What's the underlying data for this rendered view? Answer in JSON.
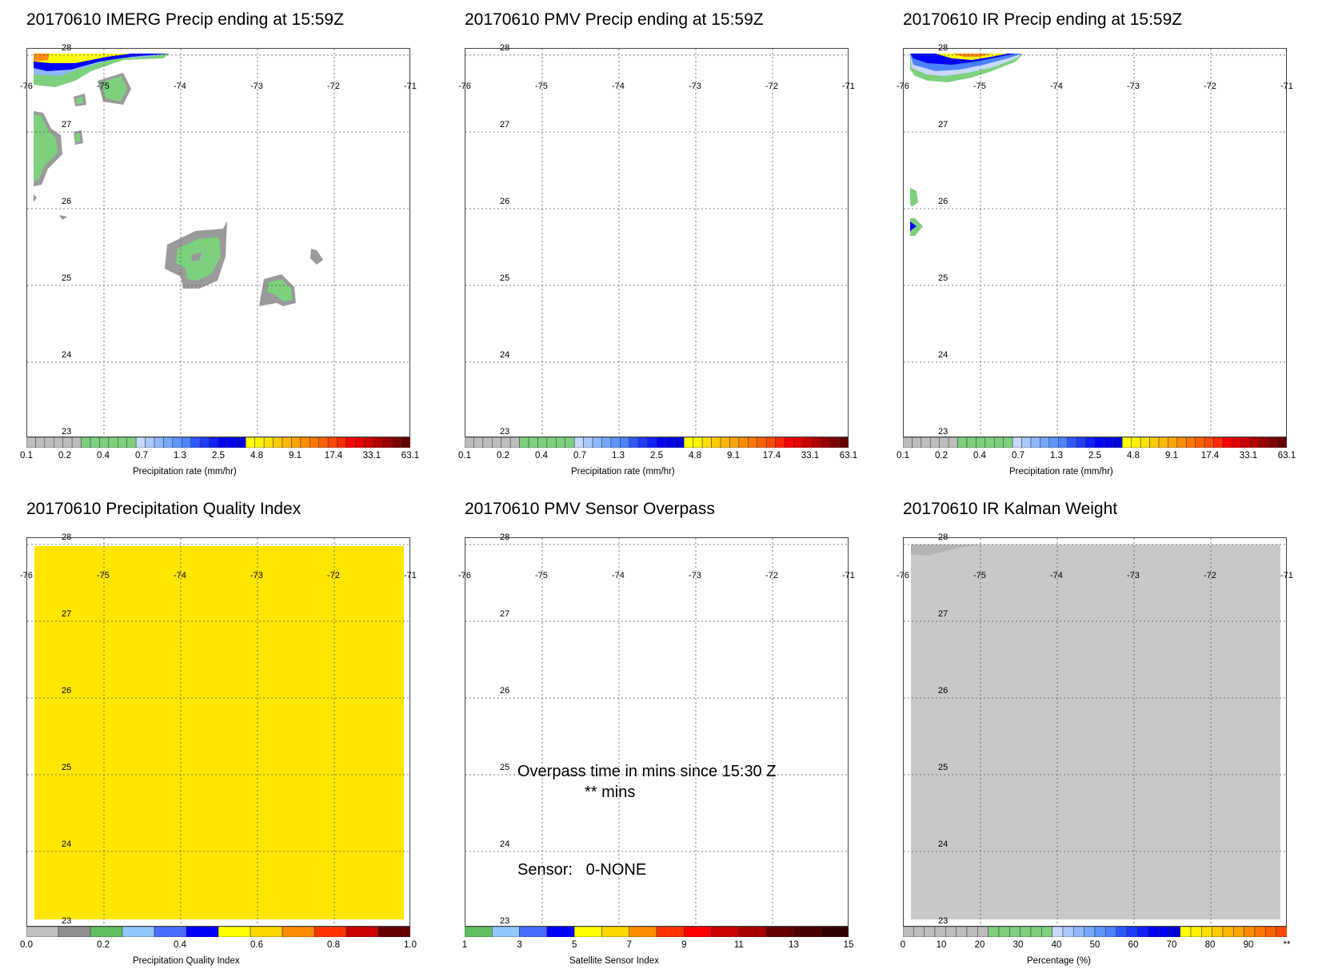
{
  "panels": [
    {
      "id": "imerg",
      "title": "20170610 IMERG Precip ending at 15:59Z",
      "colorbar": {
        "title": "Precipitation rate (mm/hr)",
        "ticks": [
          "0.1",
          "0.2",
          "0.4",
          "0.7",
          "1.3",
          "2.5",
          "4.8",
          "9.1",
          "17.4",
          "33.1",
          "63.1"
        ],
        "colors": [
          "#bdbdbd",
          "#bdbdbd",
          "#bdbdbd",
          "#bdbdbd",
          "#bdbdbd",
          "#bdbdbd",
          "#7dd07d",
          "#7dd07d",
          "#7dd07d",
          "#7dd07d",
          "#7dd07d",
          "#7dd07d",
          "#c8d8ff",
          "#a9c9ff",
          "#8fb8ff",
          "#76a7ff",
          "#5c95ff",
          "#4a82ff",
          "#2f57ff",
          "#1f3bff",
          "#0f1fff",
          "#0000ff",
          "#0000f0",
          "#0000dc",
          "#ffff00",
          "#fff200",
          "#ffe000",
          "#ffcc00",
          "#ffb800",
          "#ffa300",
          "#ff8c00",
          "#ff7700",
          "#ff6000",
          "#ff4800",
          "#ff2800",
          "#ff0000",
          "#e60000",
          "#cc0000",
          "#b30000",
          "#990000",
          "#800000",
          "#660000"
        ]
      }
    },
    {
      "id": "pmv",
      "title": "20170610 PMV Precip ending at 15:59Z",
      "colorbar": {
        "title": "Precipitation rate (mm/hr)",
        "ticks": [
          "0.1",
          "0.2",
          "0.4",
          "0.7",
          "1.3",
          "2.5",
          "4.8",
          "9.1",
          "17.4",
          "33.1",
          "63.1"
        ],
        "colors": [
          "#bdbdbd",
          "#bdbdbd",
          "#bdbdbd",
          "#bdbdbd",
          "#bdbdbd",
          "#bdbdbd",
          "#7dd07d",
          "#7dd07d",
          "#7dd07d",
          "#7dd07d",
          "#7dd07d",
          "#7dd07d",
          "#c8d8ff",
          "#a9c9ff",
          "#8fb8ff",
          "#76a7ff",
          "#5c95ff",
          "#4a82ff",
          "#2f57ff",
          "#1f3bff",
          "#0f1fff",
          "#0000ff",
          "#0000f0",
          "#0000dc",
          "#ffff00",
          "#fff200",
          "#ffe000",
          "#ffcc00",
          "#ffb800",
          "#ffa300",
          "#ff8c00",
          "#ff7700",
          "#ff6000",
          "#ff4800",
          "#ff2800",
          "#ff0000",
          "#e60000",
          "#cc0000",
          "#b30000",
          "#990000",
          "#800000",
          "#660000"
        ]
      }
    },
    {
      "id": "ir",
      "title": "20170610 IR Precip ending at 15:59Z",
      "colorbar": {
        "title": "Precipitation rate (mm/hr)",
        "ticks": [
          "0.1",
          "0.2",
          "0.4",
          "0.7",
          "1.3",
          "2.5",
          "4.8",
          "9.1",
          "17.4",
          "33.1",
          "63.1"
        ],
        "colors": [
          "#bdbdbd",
          "#bdbdbd",
          "#bdbdbd",
          "#bdbdbd",
          "#bdbdbd",
          "#bdbdbd",
          "#7dd07d",
          "#7dd07d",
          "#7dd07d",
          "#7dd07d",
          "#7dd07d",
          "#7dd07d",
          "#c8d8ff",
          "#a9c9ff",
          "#8fb8ff",
          "#76a7ff",
          "#5c95ff",
          "#4a82ff",
          "#2f57ff",
          "#1f3bff",
          "#0f1fff",
          "#0000ff",
          "#0000f0",
          "#0000dc",
          "#ffff00",
          "#fff200",
          "#ffe000",
          "#ffcc00",
          "#ffb800",
          "#ffa300",
          "#ff8c00",
          "#ff7700",
          "#ff6000",
          "#ff4800",
          "#ff2800",
          "#ff0000",
          "#e60000",
          "#cc0000",
          "#b30000",
          "#990000",
          "#800000",
          "#660000"
        ]
      }
    },
    {
      "id": "pqi",
      "title": "20170610 Precipitation Quality Index",
      "colorbar": {
        "title": "Precipitation Quality Index",
        "ticks": [
          "0.0",
          "0.2",
          "0.4",
          "0.6",
          "0.8",
          "1.0"
        ],
        "colors": [
          "#c0c0c0",
          "#909090",
          "#5fbf5f",
          "#90c8ff",
          "#4a6cff",
          "#0000ff",
          "#ffff00",
          "#ffd700",
          "#ff8c00",
          "#ff3300",
          "#cc0000",
          "#660000"
        ]
      }
    },
    {
      "id": "overpass",
      "title": "20170610 PMV Sensor Overpass",
      "colorbar": {
        "title": "Satellite Sensor Index",
        "ticks": [
          "1",
          "3",
          "5",
          "7",
          "9",
          "11",
          "13",
          "15"
        ],
        "colors": [
          "#5fbf5f",
          "#90c8ff",
          "#4a6cff",
          "#0000ff",
          "#ffff00",
          "#ffd700",
          "#ff8c00",
          "#ff3300",
          "#ff0000",
          "#cc0000",
          "#aa0000",
          "#660000",
          "#4d0000",
          "#330000"
        ]
      },
      "annotations": {
        "line1": "Overpass time in mins since 15:30 Z",
        "line2": "** mins",
        "line3": "Sensor:   0-NONE"
      }
    },
    {
      "id": "kalman",
      "title": "20170610 IR Kalman Weight",
      "colorbar": {
        "title": "Percentage (%)",
        "ticks": [
          "0",
          "10",
          "20",
          "30",
          "40",
          "50",
          "60",
          "70",
          "80",
          "90",
          "**"
        ],
        "colors": [
          "#bdbdbd",
          "#bdbdbd",
          "#bdbdbd",
          "#bdbdbd",
          "#bdbdbd",
          "#bdbdbd",
          "#bdbdbd",
          "#bdbdbd",
          "#7dd07d",
          "#7dd07d",
          "#7dd07d",
          "#7dd07d",
          "#7dd07d",
          "#7dd07d",
          "#c8d8ff",
          "#a9c9ff",
          "#8fb8ff",
          "#76a7ff",
          "#5c95ff",
          "#4a82ff",
          "#2f57ff",
          "#1f3bff",
          "#0f1fff",
          "#0000ff",
          "#0000f0",
          "#0000dc",
          "#ffff00",
          "#fff200",
          "#ffe000",
          "#ffcc00",
          "#ffb800",
          "#ffa300",
          "#ff8c00",
          "#ff7700",
          "#ff6000",
          "#ff4800"
        ]
      }
    }
  ],
  "chart_data": {
    "type": "heatmap",
    "map_grid": {
      "lon_labels": [
        "-76",
        "-75",
        "-74",
        "-73",
        "-72",
        "-71"
      ],
      "lat_labels": [
        "28",
        "27",
        "26",
        "25",
        "24",
        "23"
      ],
      "lon_range": [
        -76,
        -71
      ],
      "lat_range": [
        23,
        28
      ],
      "grid": true
    },
    "fields": {
      "imerg": "scattered light precipitation (0.1–1.3 mm/hr) with heavier rates up to 17.4 mm/hr at the top-left corner",
      "pmv": "no precipitation",
      "ir": "precipitation at the top-left corner (0.7–9.1 mm/hr)",
      "pqi": "uniform quality index near 0.6",
      "overpass": "no sensor overpass",
      "kalman": "uniform weight near 0"
    }
  }
}
